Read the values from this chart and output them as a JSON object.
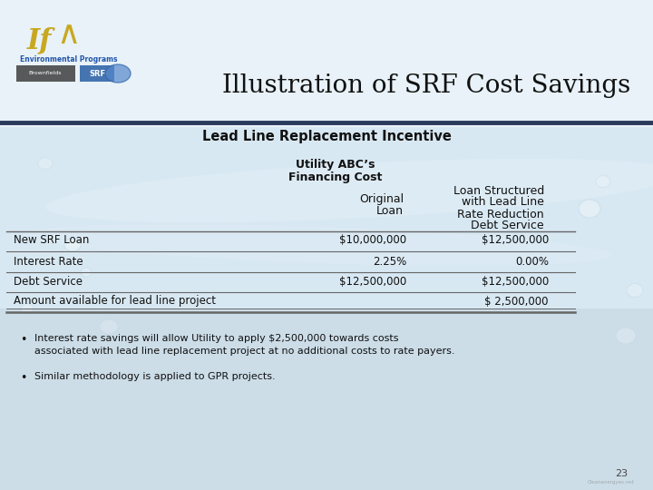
{
  "title": "Illustration of SRF Cost Savings",
  "section_title": "Lead Line Replacement Incentive",
  "col_header_left": "Utility ABC’s",
  "col_header_right": "Financing Cost",
  "col_sub1_line1": "Original",
  "col_sub1_line2": "Loan",
  "col_sub2_line1": "Loan Structured",
  "col_sub2_line2": "with Lead Line",
  "col_sub2_line3": "Rate Reduction",
  "col_sub2_line4": "Debt Service",
  "rows": [
    {
      "label": "New SRF Loan",
      "val1": "$10,000,000",
      "val2": "$12,500,000"
    },
    {
      "label": "Interest Rate",
      "val1": "2.25%",
      "val2": "0.00%"
    },
    {
      "label": "Debt Service",
      "val1": "$12,500,000",
      "val2": "$12,500,000"
    },
    {
      "label": "Amount available for lead line project",
      "val1": "",
      "val2": "$ 2,500,000"
    }
  ],
  "bullet1_line1": "Interest rate savings will allow Utility to apply $2,500,000 towards costs",
  "bullet1_line2": "associated with lead line replacement project at no additional costs to rate payers.",
  "bullet2": "Similar methodology is applied to GPR projects.",
  "page_num": "23",
  "bg_top_color": "#dce8f0",
  "bg_bottom_color": "#ccdde8",
  "divider_color": "#2a3a5c",
  "text_color": "#111111",
  "table_line_color": "#666666",
  "title_fontsize": 20,
  "section_fontsize": 10.5,
  "header_fontsize": 9,
  "table_fontsize": 8.5,
  "bullet_fontsize": 8,
  "page_fontsize": 8
}
